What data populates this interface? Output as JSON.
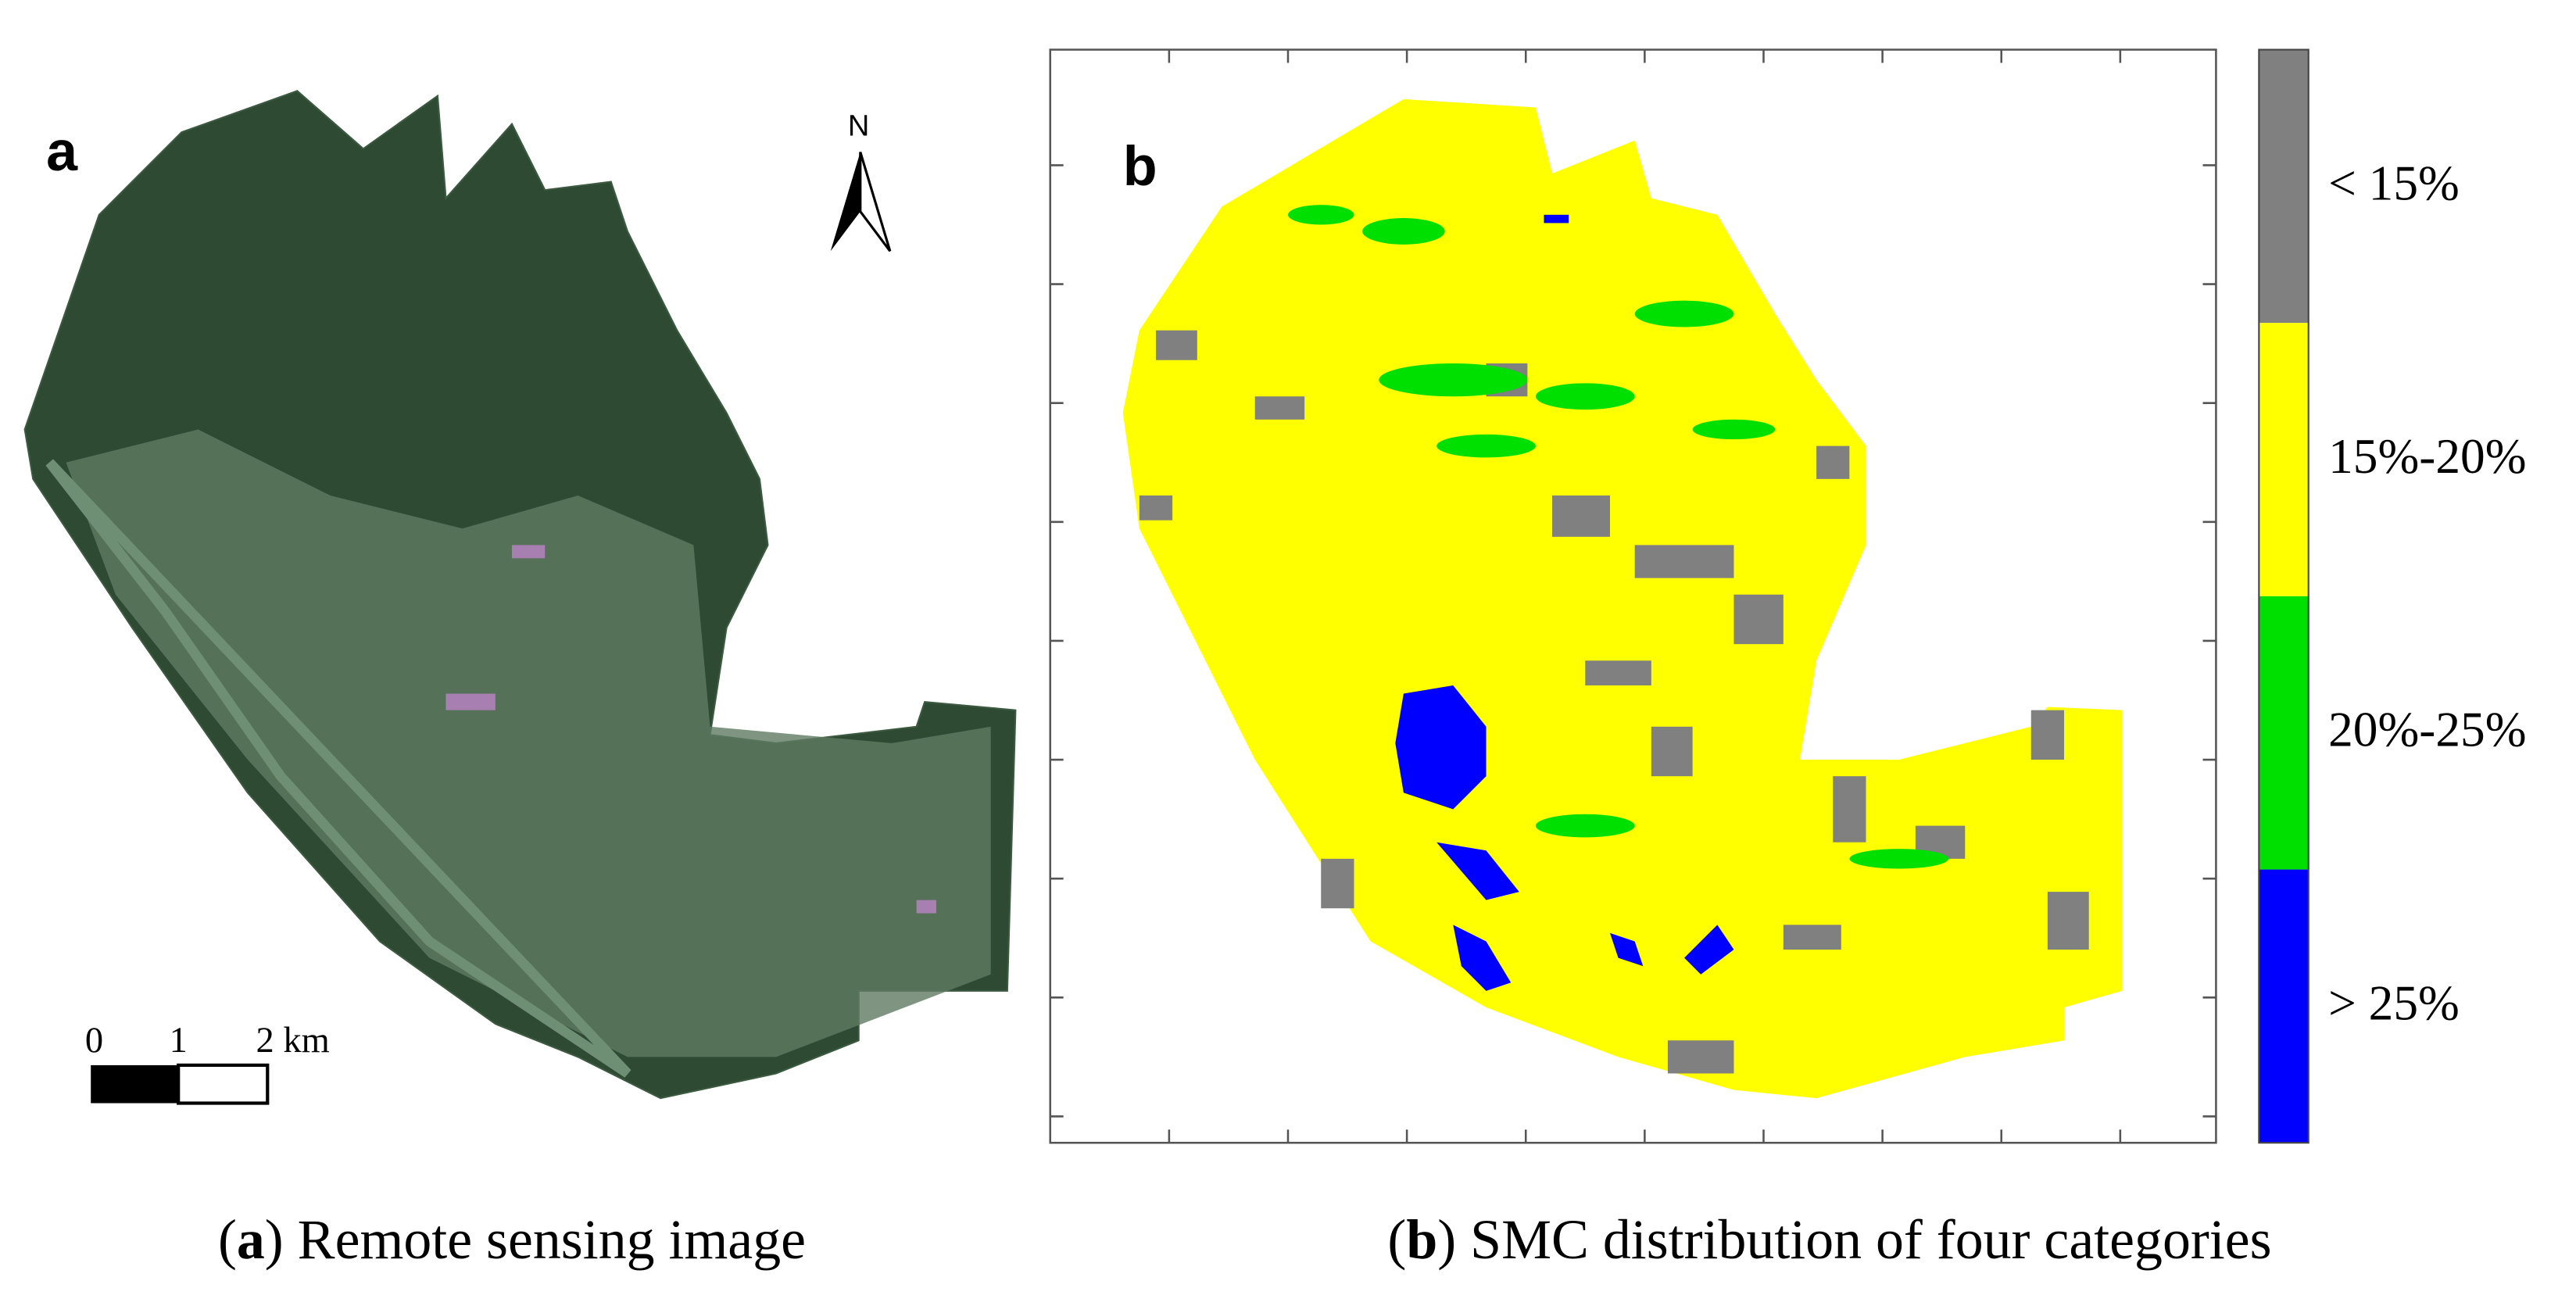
{
  "panel_a": {
    "label": "a",
    "north": "N",
    "scale_labels": [
      "0",
      "1",
      "2 km"
    ],
    "caption": [
      "(",
      "a",
      ") Remote sensing image"
    ]
  },
  "panel_b": {
    "label": "b",
    "legend": [
      {
        "label": "< 15%",
        "color": "#808080"
      },
      {
        "label": "15%-20%",
        "color": "#ffff00"
      },
      {
        "label": "20%-25%",
        "color": "#00e000"
      },
      {
        "label": "> 25%",
        "color": "#0000ff"
      }
    ],
    "caption": [
      "(",
      "b",
      ") SMC distribution of four categories"
    ]
  }
}
